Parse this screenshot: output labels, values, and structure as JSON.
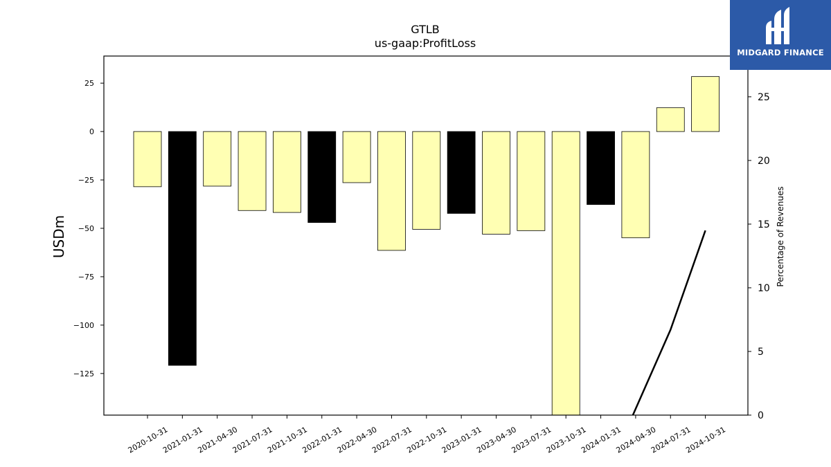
{
  "chart_data": {
    "type": "bar",
    "title": "GTLB",
    "subtitle": "us-gaap:ProfitLoss",
    "ylabel": "USDm",
    "y2label": "Percentage of Revenues",
    "categories": [
      "2020-10-31",
      "2021-01-31",
      "2021-04-30",
      "2021-07-31",
      "2021-10-31",
      "2022-01-31",
      "2022-04-30",
      "2022-07-31",
      "2022-10-31",
      "2023-01-31",
      "2023-04-30",
      "2023-07-31",
      "2023-10-31",
      "2024-01-31",
      "2024-04-30",
      "2024-07-31",
      "2024-10-31"
    ],
    "values": [
      -28.5,
      -120.8,
      -28.2,
      -40.8,
      -41.8,
      -47.0,
      -26.4,
      -61.4,
      -50.5,
      -42.3,
      -53.0,
      -51.2,
      -147.0,
      -37.7,
      -54.9,
      12.3,
      28.4
    ],
    "bar_colors": [
      "#ffffb3",
      "#000000",
      "#ffffb3",
      "#ffffb3",
      "#ffffb3",
      "#000000",
      "#ffffb3",
      "#ffffb3",
      "#ffffb3",
      "#000000",
      "#ffffb3",
      "#ffffb3",
      "#ffffb3",
      "#000000",
      "#ffffb3",
      "#ffffb3",
      "#ffffb3"
    ],
    "ylim": [
      -146.5,
      39
    ],
    "yticks": [
      25,
      0,
      -25,
      -50,
      -75,
      -100,
      -125
    ],
    "line_series": {
      "x": [
        "2024-04-30",
        "2024-07-31",
        "2024-10-31"
      ],
      "values": [
        0,
        6.7,
        14.5
      ]
    },
    "y2lim": [
      0,
      28.2
    ],
    "y2ticks": [
      0,
      5,
      10,
      15,
      20,
      25
    ],
    "grid": false
  },
  "logo": {
    "text": "MIDGARD FINANCE",
    "color": "#2c5aa8"
  }
}
